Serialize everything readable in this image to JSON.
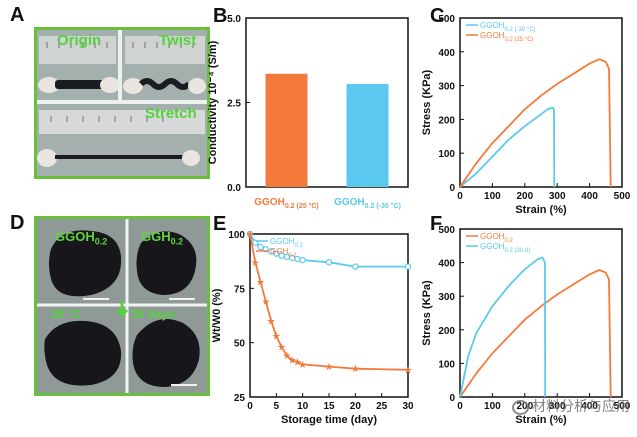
{
  "panels": {
    "A": {
      "letter": "A",
      "labels": [
        "Origin",
        "Twist",
        "Stretch"
      ]
    },
    "D": {
      "letter": "D",
      "labels": [
        "GGOH",
        "0.2",
        "GGH",
        "0.2",
        "20 °C",
        "30 days"
      ]
    }
  },
  "chart_data": [
    {
      "id": "B",
      "type": "bar",
      "letter": "B",
      "ylabel": "Conductivity 10⁻⁴ (S/m)",
      "ylim": [
        0,
        5.0
      ],
      "yticks": [
        "0.0",
        "2.5",
        "5.0"
      ],
      "categories": [
        {
          "main": "GGOH",
          "sub": "0.2 (25 °C)",
          "color": "#f47a3c"
        },
        {
          "main": "GGOH",
          "sub": "0.2 (-30 °C)",
          "color": "#5bc9ef"
        }
      ],
      "values": [
        3.35,
        3.05
      ]
    },
    {
      "id": "C",
      "type": "line",
      "letter": "C",
      "xlabel": "Strain (%)",
      "ylabel": "Stress (KPa)",
      "xlim": [
        0,
        500
      ],
      "ylim": [
        0,
        500
      ],
      "xticks": [
        "0",
        "100",
        "200",
        "300",
        "400",
        "500"
      ],
      "yticks": [
        "0",
        "100",
        "200",
        "300",
        "400",
        "500"
      ],
      "series": [
        {
          "name": "GGOH",
          "sub": "0.2 (-30 °C)",
          "color": "#5bc9ef",
          "x": [
            0,
            50,
            100,
            150,
            200,
            250,
            270,
            285,
            290,
            291
          ],
          "y": [
            0,
            40,
            90,
            140,
            180,
            215,
            230,
            235,
            230,
            0
          ]
        },
        {
          "name": "GGOH",
          "sub": "0.2 (25 °C)",
          "color": "#f47a3c",
          "x": [
            0,
            50,
            100,
            150,
            200,
            250,
            300,
            350,
            400,
            430,
            450,
            460,
            465
          ],
          "y": [
            0,
            70,
            130,
            180,
            230,
            270,
            305,
            335,
            365,
            378,
            370,
            350,
            0
          ]
        }
      ]
    },
    {
      "id": "E",
      "type": "line",
      "letter": "E",
      "xlabel": "Storage time (day)",
      "ylabel": "Wt/W0 (%)",
      "xlim": [
        0,
        30
      ],
      "ylim": [
        25,
        100
      ],
      "xticks": [
        "0",
        "5",
        "10",
        "15",
        "20",
        "25",
        "30"
      ],
      "yticks": [
        "25",
        "50",
        "75",
        "100"
      ],
      "series": [
        {
          "name": "GGOH",
          "sub": "0.2",
          "color": "#5bc9ef",
          "marker": "circle",
          "x": [
            0,
            1,
            2,
            3,
            4,
            5,
            6,
            7,
            8,
            9,
            10,
            15,
            20,
            30
          ],
          "y": [
            100,
            96,
            94,
            93,
            92,
            91,
            90,
            89.5,
            89,
            88.5,
            88,
            87,
            85,
            85
          ]
        },
        {
          "name": "GGH",
          "sub": "0.2",
          "color": "#f47a3c",
          "marker": "star",
          "x": [
            0,
            1,
            2,
            3,
            4,
            5,
            6,
            7,
            8,
            9,
            10,
            15,
            20,
            30
          ],
          "y": [
            100,
            87,
            78,
            69,
            60,
            53,
            48,
            44,
            42,
            41,
            40,
            39,
            38,
            37.5
          ]
        }
      ]
    },
    {
      "id": "F",
      "type": "line",
      "letter": "F",
      "xlabel": "Strain (%)",
      "ylabel": "Stress (KPa)",
      "xlim": [
        0,
        500
      ],
      "ylim": [
        0,
        500
      ],
      "xticks": [
        "0",
        "100",
        "200",
        "300",
        "400",
        "500"
      ],
      "yticks": [
        "0",
        "100",
        "200",
        "300",
        "400",
        "500"
      ],
      "series": [
        {
          "name": "GGOH",
          "sub": "0.2",
          "color": "#f47a3c",
          "x": [
            0,
            50,
            100,
            150,
            200,
            250,
            300,
            350,
            400,
            430,
            450,
            460,
            465
          ],
          "y": [
            0,
            70,
            130,
            180,
            230,
            270,
            305,
            335,
            365,
            378,
            370,
            350,
            0
          ]
        },
        {
          "name": "GGOH",
          "sub": "0.2 (30 d)",
          "color": "#5bc9ef",
          "x": [
            0,
            25,
            50,
            100,
            150,
            200,
            240,
            255,
            262,
            263
          ],
          "y": [
            0,
            120,
            190,
            270,
            330,
            380,
            410,
            415,
            400,
            0
          ]
        }
      ]
    }
  ],
  "watermark": "材料分析与应用"
}
